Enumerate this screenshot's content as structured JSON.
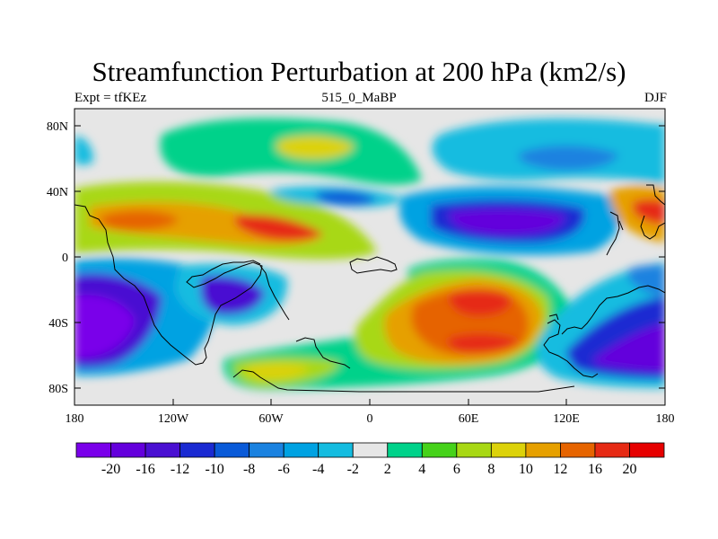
{
  "figure": {
    "title": "Streamfunction Perturbation at 200 hPa (km2/s)",
    "left_string": "Expt = tfKEz",
    "center_string": "515_0_MaBP",
    "right_string": "DJF"
  },
  "map_axes": {
    "x_ticks": [
      "180",
      "120W",
      "60W",
      "0",
      "60E",
      "120E",
      "180"
    ],
    "y_ticks": [
      "80N",
      "40N",
      "0",
      "40S",
      "80S"
    ]
  },
  "colorbar": {
    "labels": [
      "-20",
      "-16",
      "-12",
      "-10",
      "-8",
      "-6",
      "-4",
      "-2",
      "2",
      "4",
      "6",
      "8",
      "10",
      "12",
      "16",
      "20"
    ],
    "colors": [
      "#7a00ea",
      "#6400dc",
      "#4a10d2",
      "#1a2ad2",
      "#0a5ad8",
      "#1a82e0",
      "#00a2e2",
      "#14bce0",
      "#e6e6e6",
      "#00d28a",
      "#46d21a",
      "#a8d814",
      "#dcd20a",
      "#e6a000",
      "#e66400",
      "#e62a14",
      "#e60000"
    ]
  },
  "colors": {
    "missing": "#e6e6e6",
    "coast": "#000000"
  }
}
